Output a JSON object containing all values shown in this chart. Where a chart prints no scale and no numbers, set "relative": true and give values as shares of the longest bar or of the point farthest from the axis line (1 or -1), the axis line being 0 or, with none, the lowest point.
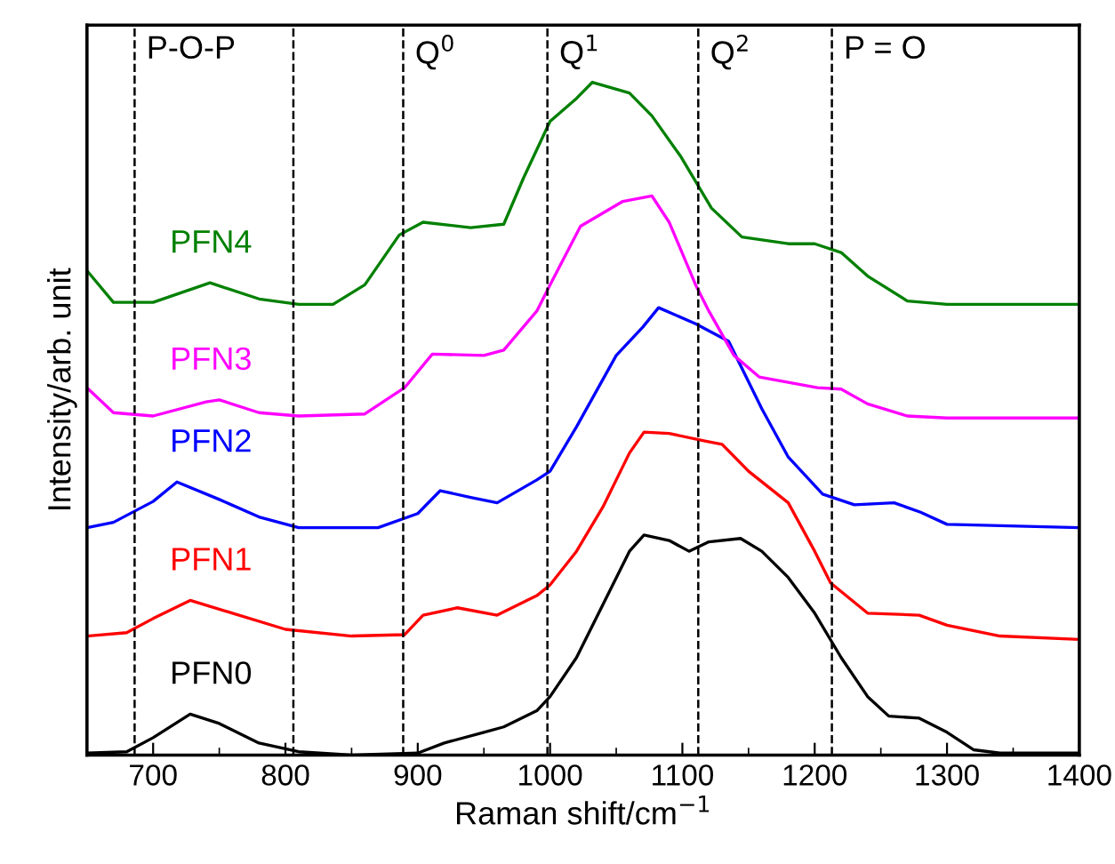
{
  "chart_data": {
    "type": "line",
    "relative": true,
    "xlabel": "Raman shift/cm$^{−1}$",
    "ylabel": "Intensity/arb. unit",
    "xlim": [
      650,
      1400
    ],
    "xticks": [
      700,
      800,
      900,
      1000,
      1100,
      1200,
      1300,
      1400
    ],
    "tick_labels": "x",
    "grid": false,
    "legend": false,
    "marker": "none",
    "line_style": "solid",
    "series": [
      {
        "name": "PFN0",
        "color": "#000000",
        "x": [
          650,
          680,
          700,
          728,
          750,
          780,
          810,
          850,
          900,
          920,
          950,
          965,
          990,
          1000,
          1020,
          1040,
          1060,
          1071,
          1090,
          1105,
          1120,
          1144,
          1160,
          1180,
          1200,
          1220,
          1240,
          1256,
          1279,
          1300,
          1320,
          1340,
          1400
        ],
        "values": [
          0.003,
          0.005,
          0.026,
          0.061,
          0.047,
          0.018,
          0.005,
          0,
          0.003,
          0.018,
          0.034,
          0.042,
          0.066,
          0.087,
          0.145,
          0.224,
          0.303,
          0.327,
          0.319,
          0.303,
          0.317,
          0.322,
          0.303,
          0.264,
          0.211,
          0.145,
          0.087,
          0.058,
          0.055,
          0.034,
          0.008,
          0.003,
          0.003
        ]
      },
      {
        "name": "PFN1",
        "color": "#ff0000",
        "x": [
          650,
          680,
          700,
          728,
          760,
          800,
          850,
          890,
          904,
          930,
          960,
          990,
          1000,
          1020,
          1040,
          1060,
          1071,
          1090,
          1117,
          1130,
          1150,
          1180,
          1200,
          1212,
          1240,
          1279,
          1300,
          1340,
          1400
        ],
        "values": [
          0.177,
          0.182,
          0.203,
          0.23,
          0.211,
          0.187,
          0.177,
          0.179,
          0.208,
          0.219,
          0.208,
          0.237,
          0.253,
          0.303,
          0.369,
          0.449,
          0.48,
          0.478,
          0.467,
          0.462,
          0.422,
          0.375,
          0.303,
          0.256,
          0.211,
          0.208,
          0.193,
          0.177,
          0.172
        ]
      },
      {
        "name": "PFN2",
        "color": "#0000ff",
        "x": [
          650,
          670,
          700,
          718,
          750,
          780,
          810,
          870,
          900,
          917,
          940,
          960,
          990,
          1000,
          1020,
          1050,
          1070,
          1082,
          1110,
          1135,
          1160,
          1180,
          1206,
          1230,
          1260,
          1280,
          1300,
          1400
        ],
        "values": [
          0.338,
          0.346,
          0.377,
          0.406,
          0.38,
          0.354,
          0.338,
          0.338,
          0.359,
          0.393,
          0.383,
          0.375,
          0.409,
          0.422,
          0.488,
          0.594,
          0.636,
          0.665,
          0.641,
          0.615,
          0.515,
          0.443,
          0.388,
          0.372,
          0.375,
          0.361,
          0.343,
          0.338
        ]
      },
      {
        "name": "PFN3",
        "color": "#ff00ff",
        "x": [
          650,
          670,
          700,
          740,
          750,
          780,
          810,
          860,
          890,
          911,
          950,
          965,
          990,
          1000,
          1023,
          1055,
          1077,
          1090,
          1110,
          1120,
          1139,
          1158,
          1202,
          1220,
          1240,
          1270,
          1300,
          1400
        ],
        "values": [
          0.546,
          0.509,
          0.504,
          0.525,
          0.528,
          0.509,
          0.504,
          0.507,
          0.546,
          0.596,
          0.594,
          0.602,
          0.66,
          0.699,
          0.786,
          0.823,
          0.831,
          0.792,
          0.699,
          0.66,
          0.594,
          0.562,
          0.546,
          0.544,
          0.522,
          0.504,
          0.501,
          0.501
        ]
      },
      {
        "name": "PFN4",
        "color": "#008000",
        "x": [
          650,
          670,
          700,
          743,
          780,
          810,
          836,
          860,
          886,
          904,
          940,
          965,
          980,
          1000,
          1020,
          1032,
          1060,
          1077,
          1099,
          1122,
          1145,
          1180,
          1200,
          1220,
          1240,
          1270,
          1300,
          1400
        ],
        "values": [
          0.72,
          0.673,
          0.673,
          0.702,
          0.678,
          0.67,
          0.67,
          0.699,
          0.773,
          0.792,
          0.784,
          0.789,
          0.858,
          0.942,
          0.976,
          1.0,
          0.984,
          0.95,
          0.889,
          0.813,
          0.77,
          0.76,
          0.76,
          0.747,
          0.712,
          0.675,
          0.67,
          0.67
        ]
      }
    ],
    "ref_lines": [
      {
        "axis": "x",
        "value": 686,
        "label": "P-O-P",
        "color": "#000000",
        "line_style": "dashed"
      },
      {
        "axis": "x",
        "value": 806,
        "color": "#000000",
        "line_style": "dashed"
      },
      {
        "axis": "x",
        "value": 889,
        "label": "Q$^{0}$",
        "color": "#000000",
        "line_style": "dashed"
      },
      {
        "axis": "x",
        "value": 998,
        "label": "Q$^{1}$",
        "color": "#000000",
        "line_style": "dashed"
      },
      {
        "axis": "x",
        "value": 1112,
        "label": "Q$^{2}$",
        "color": "#000000",
        "line_style": "dashed"
      },
      {
        "axis": "x",
        "value": 1213,
        "label": "P = O",
        "color": "#000000",
        "line_style": "dashed"
      }
    ]
  }
}
